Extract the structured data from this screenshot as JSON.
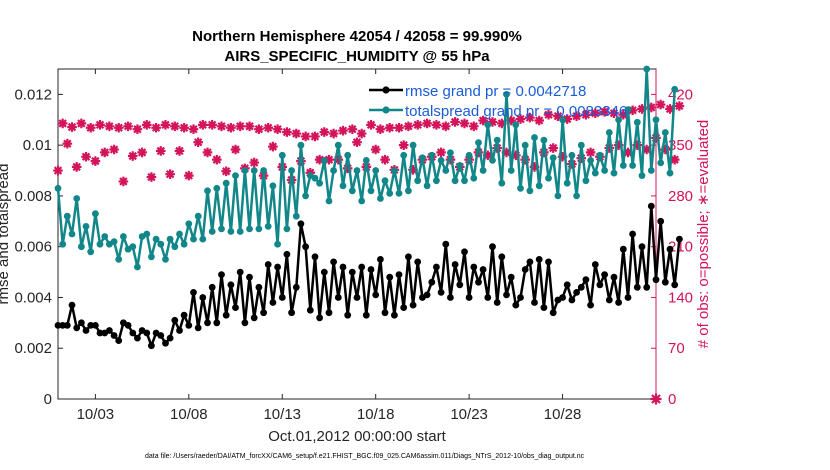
{
  "chart_data": {
    "type": "line",
    "title": [
      "Northern Hemisphere 42054 / 42058 = 99.990%",
      "AIRS_SPECIFIC_HUMIDITY @ 55 hPa"
    ],
    "xlabel": "Oct.01,2012 00:00:00 start",
    "ylabel_left": "rmse and totalspread",
    "ylabel_right": "# of obs: o=possible; ∗=evaluated",
    "footnote": "data file: /Users/raeder/DAI/ATM_forcXX/CAM6_setup/f.e21.FHIST_BGC.f09_025.CAM6assim.011/Diags_NTrS_2012-10/obs_diag_output.nc",
    "x_range": [
      1,
      33
    ],
    "y_range_left": [
      0,
      0.013
    ],
    "y_range_right": [
      0,
      455
    ],
    "x_ticks": [
      {
        "value": 3,
        "label": "10/03"
      },
      {
        "value": 8,
        "label": "10/08"
      },
      {
        "value": 13,
        "label": "10/13"
      },
      {
        "value": 18,
        "label": "10/18"
      },
      {
        "value": 23,
        "label": "10/23"
      },
      {
        "value": 28,
        "label": "10/28"
      }
    ],
    "y_ticks_left": [
      {
        "value": 0,
        "label": "0"
      },
      {
        "value": 0.002,
        "label": "0.002"
      },
      {
        "value": 0.004,
        "label": "0.004"
      },
      {
        "value": 0.006,
        "label": "0.006"
      },
      {
        "value": 0.008,
        "label": "0.008"
      },
      {
        "value": 0.01,
        "label": "0.01"
      },
      {
        "value": 0.012,
        "label": "0.012"
      }
    ],
    "y_ticks_right": [
      {
        "value": 0,
        "label": "0"
      },
      {
        "value": 70,
        "label": "70"
      },
      {
        "value": 140,
        "label": "140"
      },
      {
        "value": 210,
        "label": "210"
      },
      {
        "value": 280,
        "label": "280"
      },
      {
        "value": 350,
        "label": "350"
      },
      {
        "value": 420,
        "label": "420"
      }
    ],
    "legend": [
      {
        "name": "rmse grand pr = 0.0042718",
        "color": "#000000"
      },
      {
        "name": "totalspread grand pr = 0.0083346",
        "color": "#12878a"
      }
    ],
    "colors": {
      "rmse": "#000000",
      "spread": "#12878a",
      "obs": "#d4145a"
    },
    "series": [
      {
        "name": "rmse",
        "t_start": 1,
        "t_step": 0.25,
        "values": [
          0.0029,
          0.0029,
          0.0029,
          0.0037,
          0.0028,
          0.003,
          0.0027,
          0.0029,
          0.0029,
          0.0026,
          0.0026,
          0.0027,
          0.0025,
          0.0023,
          0.003,
          0.0029,
          0.0026,
          0.0024,
          0.0027,
          0.0026,
          0.0021,
          0.0026,
          0.0025,
          0.0022,
          0.0024,
          0.0031,
          0.0027,
          0.0033,
          0.0029,
          0.0042,
          0.0028,
          0.004,
          0.003,
          0.0044,
          0.003,
          0.0049,
          0.0033,
          0.0045,
          0.0036,
          0.005,
          0.003,
          0.0048,
          0.0032,
          0.0044,
          0.0034,
          0.0053,
          0.0038,
          0.0052,
          0.004,
          0.0057,
          0.0034,
          0.0044,
          0.0069,
          0.006,
          0.0035,
          0.0056,
          0.0032,
          0.005,
          0.0034,
          0.0054,
          0.004,
          0.0052,
          0.0033,
          0.005,
          0.004,
          0.0052,
          0.0033,
          0.0051,
          0.0041,
          0.0055,
          0.0034,
          0.0048,
          0.0033,
          0.0049,
          0.0036,
          0.0056,
          0.0037,
          0.0054,
          0.004,
          0.0041,
          0.0046,
          0.0052,
          0.0042,
          0.0061,
          0.004,
          0.0053,
          0.0045,
          0.0058,
          0.004,
          0.0052,
          0.0046,
          0.0051,
          0.004,
          0.006,
          0.0038,
          0.0056,
          0.0041,
          0.0048,
          0.0037,
          0.004,
          0.0051,
          0.0054,
          0.0038,
          0.0055,
          0.0036,
          0.0054,
          0.0034,
          0.0039,
          0.004,
          0.0045,
          0.0039,
          0.0042,
          0.0044,
          0.0047,
          0.0037,
          0.0053,
          0.0045,
          0.0049,
          0.0039,
          0.0048,
          0.0038,
          0.0059,
          0.004,
          0.0065,
          0.0044,
          0.006,
          0.0044,
          0.0076,
          0.0047,
          0.007,
          0.0046,
          0.0059,
          0.0045,
          0.0063
        ]
      },
      {
        "name": "totalspread",
        "t_start": 1,
        "t_step": 0.25,
        "values": [
          0.0083,
          0.0061,
          0.0072,
          0.0065,
          0.0079,
          0.006,
          0.0068,
          0.0058,
          0.0073,
          0.0061,
          0.0064,
          0.0061,
          0.0062,
          0.0055,
          0.0064,
          0.0059,
          0.006,
          0.0052,
          0.0064,
          0.0065,
          0.0056,
          0.0063,
          0.0061,
          0.0055,
          0.0063,
          0.006,
          0.0065,
          0.0061,
          0.0069,
          0.0063,
          0.0072,
          0.0063,
          0.0082,
          0.0066,
          0.0083,
          0.0067,
          0.0085,
          0.0066,
          0.0088,
          0.0066,
          0.009,
          0.0067,
          0.009,
          0.0067,
          0.009,
          0.0068,
          0.0084,
          0.0061,
          0.0096,
          0.0067,
          0.009,
          0.0072,
          0.01,
          0.008,
          0.0088,
          0.0087,
          0.0085,
          0.0094,
          0.0078,
          0.009,
          0.01,
          0.0084,
          0.0096,
          0.0082,
          0.009,
          0.0078,
          0.0094,
          0.0082,
          0.009,
          0.0079,
          0.0086,
          0.0081,
          0.009,
          0.0081,
          0.0096,
          0.0082,
          0.01,
          0.0086,
          0.0095,
          0.0084,
          0.0096,
          0.0086,
          0.0094,
          0.009,
          0.0097,
          0.0086,
          0.0092,
          0.0086,
          0.0096,
          0.0087,
          0.0101,
          0.009,
          0.0108,
          0.0094,
          0.0102,
          0.0085,
          0.012,
          0.009,
          0.0108,
          0.0083,
          0.01,
          0.0082,
          0.0103,
          0.0084,
          0.0102,
          0.0087,
          0.0095,
          0.008,
          0.011,
          0.0085,
          0.0096,
          0.008,
          0.01,
          0.0086,
          0.0094,
          0.0089,
          0.0096,
          0.009,
          0.0105,
          0.0089,
          0.011,
          0.0092,
          0.0114,
          0.0092,
          0.0109,
          0.0088,
          0.013,
          0.009,
          0.011,
          0.0093,
          0.0105,
          0.0089,
          0.0122
        ]
      },
      {
        "name": "obs_evaluated",
        "t_start": 1,
        "t_step": 0.25,
        "values": [
          315,
          380,
          352,
          375,
          320,
          380,
          334,
          374,
          328,
          378,
          340,
          376,
          344,
          374,
          300,
          376,
          335,
          372,
          340,
          378,
          306,
          374,
          342,
          378,
          310,
          376,
          342,
          374,
          308,
          372,
          354,
          378,
          340,
          378,
          330,
          376,
          314,
          374,
          344,
          376,
          318,
          376,
          326,
          372,
          308,
          374,
          348,
          372,
          320,
          368,
          302,
          366,
          328,
          362,
          312,
          362,
          330,
          368,
          330,
          366,
          330,
          370,
          318,
          372,
          354,
          366,
          320,
          378,
          344,
          372,
          330,
          374,
          316,
          374,
          350,
          376,
          316,
          378,
          330,
          380,
          334,
          378,
          340,
          376,
          330,
          382,
          320,
          380,
          330,
          376,
          340,
          384,
          336,
          382,
          346,
          380,
          340,
          384,
          336,
          386,
          330,
          388,
          320,
          384,
          340,
          392,
          346,
          390,
          334,
          386,
          324,
          390,
          332,
          392,
          340,
          394,
          334,
          396,
          346,
          394,
          350,
          392,
          340,
          398,
          350,
          400,
          344,
          402,
          360,
          406,
          344,
          400,
          330,
          404
        ]
      }
    ]
  }
}
